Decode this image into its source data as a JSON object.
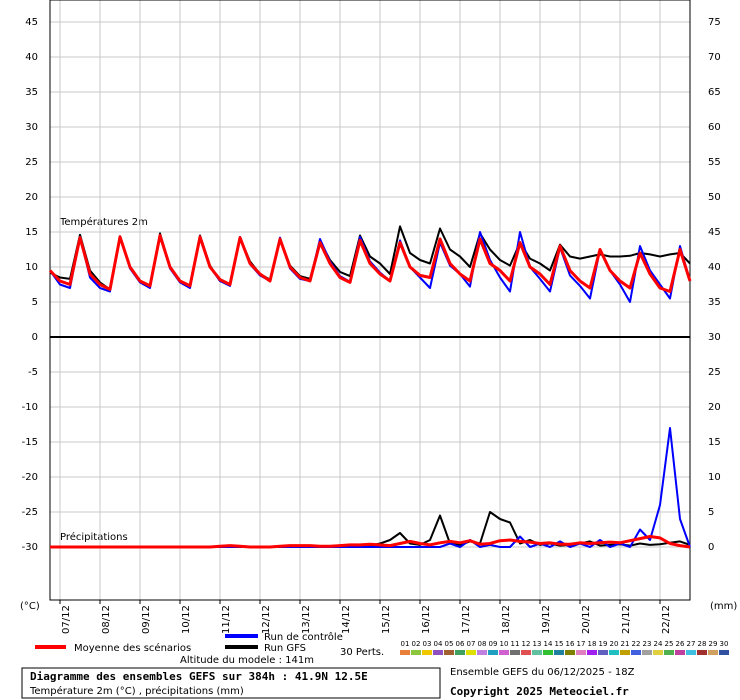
{
  "chart_data": [
    {
      "type": "line",
      "title": "Températures 2m",
      "x": [
        0,
        6,
        12,
        18,
        24,
        30,
        36,
        42,
        48,
        54,
        60,
        66,
        72,
        78,
        84,
        90,
        96,
        102,
        108,
        114,
        120,
        126,
        132,
        138,
        144,
        150,
        156,
        162,
        168,
        174,
        180,
        186,
        192,
        198,
        204,
        210,
        216,
        222,
        228,
        234,
        240,
        246,
        252,
        258,
        264,
        270,
        276,
        282,
        288,
        294,
        300,
        306,
        312,
        318,
        324,
        330,
        336,
        342,
        348,
        354,
        360,
        366,
        372,
        378,
        384
      ],
      "xlim": [
        0,
        384
      ],
      "ylim": [
        0,
        48.14
      ],
      "yticks": [
        0,
        5,
        10,
        15,
        20,
        25,
        30,
        35,
        40,
        45
      ],
      "y2lim": [
        30,
        78.14
      ],
      "y2ticks": [
        30,
        35,
        40,
        45,
        50,
        55,
        60,
        65,
        70,
        75
      ],
      "y_unit": "(°C)",
      "grid": true,
      "series": [
        {
          "name": "Moyenne des scénarios",
          "color": "#ff0000",
          "values": [
            9.5,
            8,
            7.5,
            14.2,
            9,
            7.5,
            6.8,
            14.3,
            10,
            8,
            7.3,
            14.5,
            10,
            8,
            7.3,
            14.3,
            10,
            8.2,
            7.5,
            14.2,
            10.5,
            9,
            8,
            14,
            10,
            8.5,
            8,
            13.5,
            10.5,
            8.5,
            7.8,
            13.8,
            10.5,
            9,
            8,
            13.5,
            10,
            8.8,
            8.5,
            14,
            10.5,
            9,
            8,
            14,
            10.5,
            9.5,
            8,
            13.5,
            10,
            9,
            7.5,
            13,
            9.5,
            8,
            7,
            12.5,
            9.5,
            8,
            7,
            12,
            9,
            7,
            6.5,
            12.5,
            8
          ]
        },
        {
          "name": "Run de contrôle",
          "color": "#0000ff",
          "values": [
            9.5,
            7.5,
            7,
            14.3,
            8.5,
            7,
            6.5,
            14.4,
            9.8,
            7.8,
            7,
            14.6,
            9.8,
            7.8,
            7,
            14.4,
            10,
            8,
            7.3,
            14.3,
            10.4,
            8.8,
            8,
            14.2,
            9.8,
            8.3,
            8,
            14,
            10.8,
            8.7,
            7.9,
            14.3,
            10.8,
            9.2,
            8,
            13.8,
            10,
            8.5,
            7,
            13.5,
            10.2,
            9,
            7.2,
            15,
            11,
            8.5,
            6.5,
            15,
            10,
            8.3,
            6.5,
            12.8,
            8.8,
            7.3,
            5.5,
            12.5,
            9.5,
            7.5,
            5,
            13,
            9.5,
            7.5,
            5.5,
            13,
            8
          ]
        },
        {
          "name": "Run GFS",
          "color": "#000000",
          "values": [
            9.2,
            8.5,
            8.3,
            14.6,
            9.5,
            7.8,
            6.8,
            14.4,
            10,
            8,
            7.2,
            14.8,
            10,
            8,
            7.2,
            14.5,
            10.2,
            8,
            7.5,
            14.2,
            10.8,
            9,
            8.2,
            14,
            10.2,
            8.7,
            8.3,
            13.7,
            11,
            9.3,
            8.7,
            14.5,
            11.5,
            10.5,
            9,
            15.8,
            12,
            11,
            10.5,
            15.5,
            12.5,
            11.5,
            10,
            14.8,
            12.5,
            11,
            10.2,
            13.5,
            11.2,
            10.5,
            9.5,
            13.2,
            11.5,
            11.2,
            11.5,
            11.8,
            11.5,
            11.5,
            11.6,
            12,
            11.8,
            11.5,
            11.8,
            12,
            10.5
          ]
        }
      ]
    },
    {
      "type": "line",
      "title": "Précipitations",
      "x": [
        0,
        6,
        12,
        18,
        24,
        30,
        36,
        42,
        48,
        54,
        60,
        66,
        72,
        78,
        84,
        90,
        96,
        102,
        108,
        114,
        120,
        126,
        132,
        138,
        144,
        150,
        156,
        162,
        168,
        174,
        180,
        186,
        192,
        198,
        204,
        210,
        216,
        222,
        228,
        234,
        240,
        246,
        252,
        258,
        264,
        270,
        276,
        282,
        288,
        294,
        300,
        306,
        312,
        318,
        324,
        330,
        336,
        342,
        348,
        354,
        360,
        366,
        372,
        378,
        384
      ],
      "xlim": [
        0,
        384
      ],
      "xticks": [
        {
          "value": 6,
          "label": "07/12"
        },
        {
          "value": 30,
          "label": "08/12"
        },
        {
          "value": 54,
          "label": "09/12"
        },
        {
          "value": 78,
          "label": "10/12"
        },
        {
          "value": 102,
          "label": "11/12"
        },
        {
          "value": 126,
          "label": "12/12"
        },
        {
          "value": 150,
          "label": "13/12"
        },
        {
          "value": 174,
          "label": "14/12"
        },
        {
          "value": 198,
          "label": "15/12"
        },
        {
          "value": 222,
          "label": "16/12"
        },
        {
          "value": 246,
          "label": "17/12"
        },
        {
          "value": 270,
          "label": "18/12"
        },
        {
          "value": 294,
          "label": "19/12"
        },
        {
          "value": 318,
          "label": "20/12"
        },
        {
          "value": 342,
          "label": "21/12"
        },
        {
          "value": 366,
          "label": "22/12"
        }
      ],
      "ylim": [
        -37.57,
        0
      ],
      "yticks": [
        -5,
        -10,
        -15,
        -20,
        -25,
        -30
      ],
      "y2lim": [
        -7.57,
        30
      ],
      "y2ticks": [
        0,
        5,
        10,
        15,
        20,
        25
      ],
      "y2_unit": "(mm)",
      "grid": true,
      "series": [
        {
          "color": "#ff0000",
          "axis": "y2",
          "values": [
            0,
            0,
            0,
            0,
            0,
            0,
            0,
            0,
            0,
            0,
            0,
            0,
            0,
            0,
            0,
            0,
            0,
            0.1,
            0.2,
            0.1,
            0,
            0,
            0,
            0.1,
            0.2,
            0.2,
            0.2,
            0.1,
            0.1,
            0.2,
            0.3,
            0.3,
            0.4,
            0.3,
            0.2,
            0.5,
            0.8,
            0.5,
            0.3,
            0.6,
            0.8,
            0.6,
            0.9,
            0.4,
            0.5,
            0.9,
            1,
            0.8,
            0.7,
            0.5,
            0.6,
            0.4,
            0.4,
            0.6,
            0.5,
            0.6,
            0.7,
            0.6,
            0.9,
            1.2,
            1.5,
            1.3,
            0.5,
            0.2,
            0
          ]
        },
        {
          "color": "#0000ff",
          "axis": "y2",
          "values": [
            0,
            0,
            0,
            0,
            0,
            0,
            0,
            0,
            0,
            0,
            0,
            0,
            0,
            0,
            0,
            0,
            0,
            0,
            0,
            0,
            0,
            0,
            0,
            0,
            0,
            0,
            0,
            0,
            0,
            0,
            0,
            0,
            0,
            0,
            0,
            0,
            0,
            0,
            0,
            0,
            0.5,
            0,
            1,
            0,
            0.3,
            0,
            0,
            1.5,
            0,
            0.5,
            0,
            0.8,
            0,
            0.5,
            0,
            1,
            0,
            0.5,
            0,
            2.5,
            1,
            6,
            17,
            4,
            0
          ]
        },
        {
          "color": "#000000",
          "axis": "y2",
          "values": [
            0,
            0,
            0,
            0,
            0,
            0,
            0,
            0,
            0,
            0,
            0,
            0,
            0,
            0,
            0,
            0,
            0,
            0,
            0,
            0,
            0,
            0,
            0,
            0,
            0,
            0,
            0,
            0,
            0,
            0,
            0,
            0,
            0.2,
            0.5,
            1,
            2,
            0.5,
            0.3,
            1,
            4.5,
            0.5,
            0.3,
            0.8,
            0.5,
            5,
            4,
            3.5,
            0.5,
            1,
            0.3,
            0.5,
            0.2,
            0.3,
            0.5,
            0.8,
            0.2,
            0.3,
            0.4,
            0.2,
            0.5,
            0.3,
            0.4,
            0.6,
            0.8,
            0.3
          ]
        }
      ]
    }
  ],
  "perturbations": {
    "title": "30 Perts.",
    "labels": [
      "01",
      "02",
      "03",
      "04",
      "05",
      "06",
      "07",
      "08",
      "09",
      "10",
      "11",
      "12",
      "13",
      "14",
      "15",
      "16",
      "17",
      "18",
      "19",
      "20",
      "21",
      "22",
      "23",
      "24",
      "25",
      "26",
      "27",
      "28",
      "29",
      "30"
    ],
    "colors": [
      "#e8803a",
      "#8cc63f",
      "#f0c800",
      "#9050c0",
      "#a06030",
      "#40a060",
      "#e0e000",
      "#c080e0",
      "#20a0c0",
      "#d060d0",
      "#707070",
      "#e05050",
      "#60c0a0",
      "#30c030",
      "#2080a0",
      "#808000",
      "#e080c0",
      "#a020f0",
      "#6060c0",
      "#20c0c0",
      "#c0a000",
      "#4060e0",
      "#a0a0a0",
      "#e0d040",
      "#50b050",
      "#c040a0",
      "#40c0e0",
      "#a03030",
      "#d0a060",
      "#3050a0"
    ]
  },
  "footer": {
    "altitude": "Altitude du modele : 141m",
    "box_title": "Diagramme des ensembles GEFS sur 384h : 41.9N 12.5E",
    "box_subtitle": "Température 2m (°C) , précipitations (mm)",
    "run": "Ensemble GEFS du 06/12/2025 - 18Z",
    "copyright": "Copyright 2025 Meteociel.fr"
  }
}
